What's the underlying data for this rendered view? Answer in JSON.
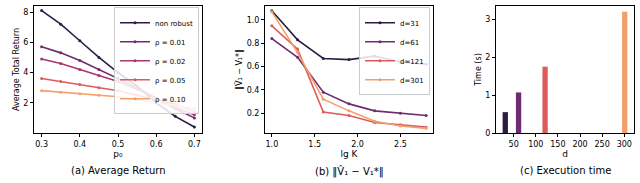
{
  "chart_data": [
    {
      "type": "line",
      "title": "(a) Average Return",
      "x_label": "p₀",
      "y_label": "Average Total Return",
      "x": [
        0.3,
        0.35,
        0.4,
        0.45,
        0.5,
        0.55,
        0.6,
        0.65,
        0.7
      ],
      "series": [
        {
          "name": "non robust",
          "color": "#2d1b45",
          "values": [
            8.1,
            7.2,
            6.1,
            5.0,
            4.0,
            3.1,
            2.0,
            1.1,
            0.4
          ]
        },
        {
          "name": "ρ = 0.01",
          "color": "#6e2c70",
          "values": [
            5.7,
            5.3,
            4.8,
            4.2,
            3.6,
            3.0,
            2.3,
            1.6,
            1.0
          ]
        },
        {
          "name": "ρ = 0.02",
          "color": "#a8366f",
          "values": [
            4.9,
            4.6,
            4.2,
            3.8,
            3.4,
            2.9,
            2.3,
            1.7,
            1.2
          ]
        },
        {
          "name": "ρ = 0.05",
          "color": "#dd5b5d",
          "values": [
            3.6,
            3.4,
            3.2,
            3.0,
            2.8,
            2.5,
            2.2,
            1.9,
            1.4
          ]
        },
        {
          "name": "ρ = 0.10",
          "color": "#f3a06d",
          "values": [
            2.8,
            2.7,
            2.6,
            2.5,
            2.4,
            2.2,
            2.0,
            1.8,
            1.6
          ]
        }
      ],
      "xlim": [
        0.28,
        0.72
      ],
      "ylim": [
        0,
        8.4
      ],
      "xticks": [
        0.3,
        0.4,
        0.5,
        0.6,
        0.7
      ],
      "yticks": [
        2,
        4,
        6,
        8
      ],
      "grid": false,
      "legend": "upper right",
      "marker": "circle"
    },
    {
      "type": "line",
      "title": "(b) ‖V̂₁ − V₁*‖",
      "x_label": "lg K",
      "y_label": "‖V̂₁ − V₁*‖",
      "x": [
        1.0,
        1.3,
        1.6,
        1.9,
        2.2,
        2.5,
        2.8
      ],
      "series": [
        {
          "name": "d=31",
          "color": "#2d1b45",
          "values": [
            1.08,
            0.83,
            0.67,
            0.66,
            0.69,
            0.64,
            0.62
          ]
        },
        {
          "name": "d=61",
          "color": "#6e2c70",
          "values": [
            0.84,
            0.68,
            0.38,
            0.28,
            0.22,
            0.2,
            0.18
          ]
        },
        {
          "name": "d=121",
          "color": "#dd5b5d",
          "values": [
            0.95,
            0.75,
            0.21,
            0.18,
            0.12,
            0.1,
            0.08
          ]
        },
        {
          "name": "d=301",
          "color": "#f3a06d",
          "values": [
            1.07,
            0.72,
            0.32,
            0.22,
            0.13,
            0.09,
            0.07
          ]
        }
      ],
      "xlim": [
        0.92,
        2.88
      ],
      "ylim": [
        0.03,
        1.12
      ],
      "xticks": [
        {
          "value": 1,
          "label": "1.0"
        },
        1.5,
        {
          "value": 2,
          "label": "2.0"
        },
        2.5
      ],
      "yticks": [
        0.2,
        0.4,
        0.6,
        0.8,
        {
          "value": 1,
          "label": "1.0"
        }
      ],
      "grid": false,
      "legend": "upper right",
      "marker": "circle"
    },
    {
      "type": "bar",
      "title": "(c) Execution time",
      "x_label": "d",
      "y_label": "Time (s)",
      "x": [
        31,
        61,
        121,
        301
      ],
      "values": [
        0.55,
        1.07,
        1.75,
        3.2
      ],
      "colors": [
        "#2d1b45",
        "#6e2c70",
        "#dd5b5d",
        "#f3a06d"
      ],
      "xlim": [
        10,
        322
      ],
      "ylim": [
        0,
        3.35
      ],
      "xticks": [
        50,
        100,
        150,
        200,
        250,
        300
      ],
      "yticks": [
        0,
        1,
        2,
        3
      ],
      "grid": false
    }
  ]
}
